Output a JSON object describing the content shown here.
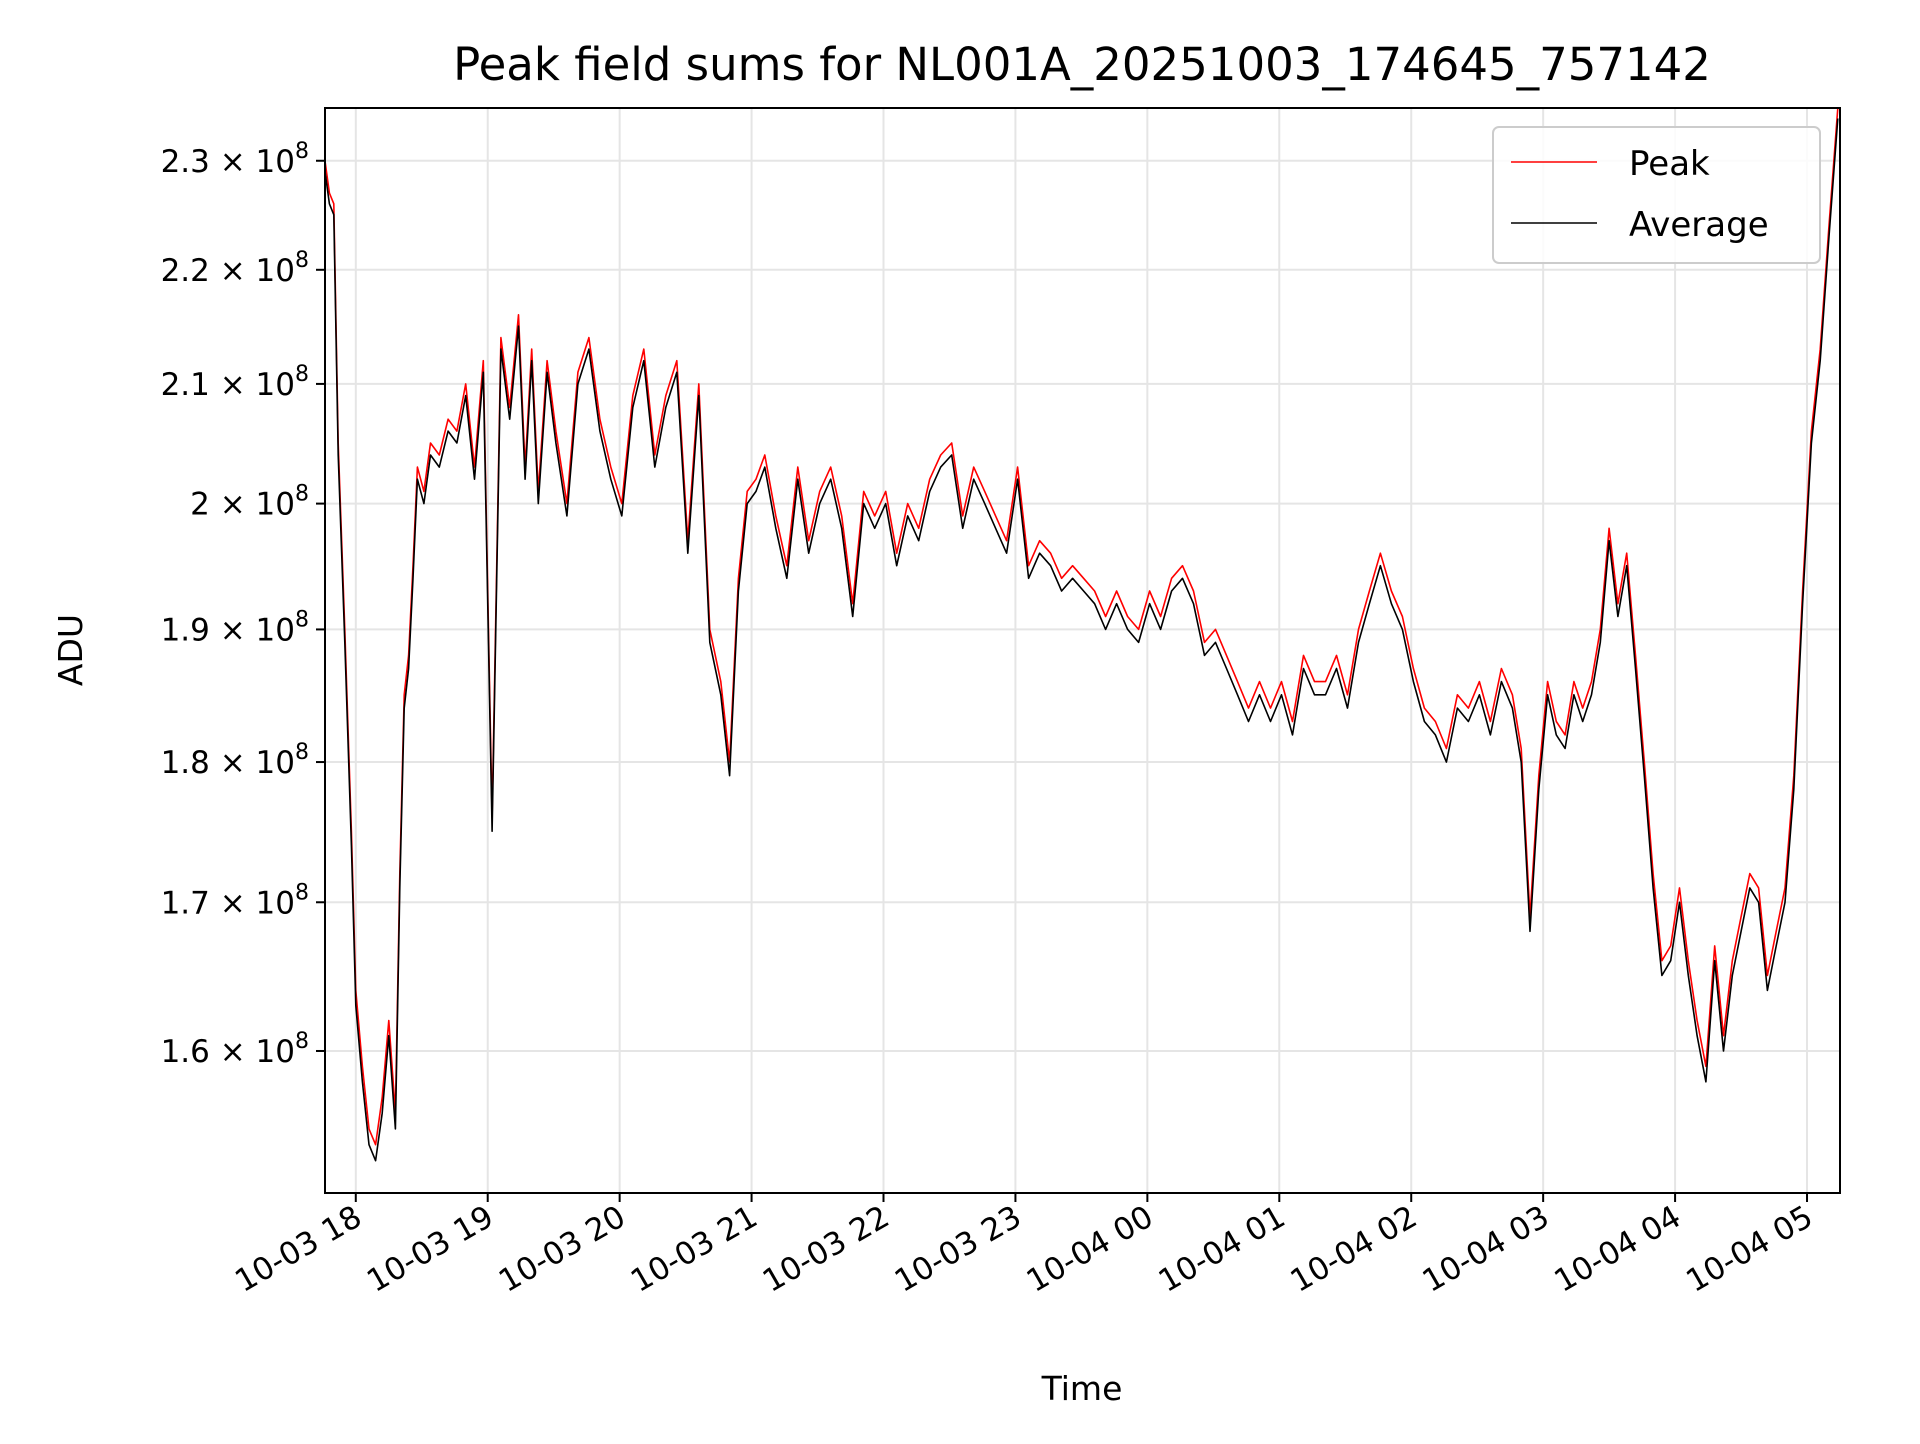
{
  "colors": {
    "peak": "#ff0000",
    "average": "#000000",
    "grid": "#e5e5e5"
  },
  "chart_data": {
    "type": "line",
    "title": "Peak field sums for NL001A_20251003_174645_757142",
    "xlabel": "Time",
    "ylabel": "ADU",
    "yscale": "log",
    "grid": true,
    "legend_position": "top-right",
    "xlim": [
      "2025-10-03 17:46",
      "2025-10-04 05:15"
    ],
    "ylim": [
      151000000,
      235000000
    ],
    "xticks": [
      "2025-10-03 18:00",
      "2025-10-03 19:00",
      "2025-10-03 20:00",
      "2025-10-03 21:00",
      "2025-10-03 22:00",
      "2025-10-03 23:00",
      "2025-10-04 00:00",
      "2025-10-04 01:00",
      "2025-10-04 02:00",
      "2025-10-04 03:00",
      "2025-10-04 04:00",
      "2025-10-04 05:00"
    ],
    "xtick_labels": [
      "10-03 18",
      "10-03 19",
      "10-03 20",
      "10-03 21",
      "10-03 22",
      "10-03 23",
      "10-04 00",
      "10-04 01",
      "10-04 02",
      "10-04 03",
      "10-04 04",
      "10-04 05"
    ],
    "yticks": [
      160000000,
      170000000,
      180000000,
      190000000,
      200000000,
      210000000,
      220000000,
      230000000
    ],
    "ytick_labels": [
      {
        "mantissa": "1.6",
        "exp": "8"
      },
      {
        "mantissa": "1.7",
        "exp": "8"
      },
      {
        "mantissa": "1.8",
        "exp": "8"
      },
      {
        "mantissa": "1.9",
        "exp": "8"
      },
      {
        "mantissa": "2",
        "exp": "8"
      },
      {
        "mantissa": "2.1",
        "exp": "8"
      },
      {
        "mantissa": "2.2",
        "exp": "8"
      },
      {
        "mantissa": "2.3",
        "exp": "8"
      }
    ],
    "times_prefix": "x values are times in HH:MM; first day 2025-10-03, values after midnight are 2025-10-04",
    "x": [
      "17:46",
      "17:48",
      "17:50",
      "17:52",
      "17:55",
      "17:58",
      "18:00",
      "18:03",
      "18:06",
      "18:09",
      "18:12",
      "18:15",
      "18:18",
      "18:20",
      "18:22",
      "18:24",
      "18:26",
      "18:28",
      "18:31",
      "18:34",
      "18:38",
      "18:42",
      "18:46",
      "18:50",
      "18:54",
      "18:58",
      "19:02",
      "19:06",
      "19:10",
      "19:14",
      "19:17",
      "19:20",
      "19:23",
      "19:27",
      "19:31",
      "19:36",
      "19:41",
      "19:46",
      "19:51",
      "19:56",
      "20:01",
      "20:06",
      "20:11",
      "20:16",
      "20:21",
      "20:26",
      "20:31",
      "20:36",
      "20:41",
      "20:46",
      "20:50",
      "20:54",
      "20:58",
      "21:02",
      "21:06",
      "21:11",
      "21:16",
      "21:21",
      "21:26",
      "21:31",
      "21:36",
      "21:41",
      "21:46",
      "21:51",
      "21:56",
      "22:01",
      "22:06",
      "22:11",
      "22:16",
      "22:21",
      "22:26",
      "22:31",
      "22:36",
      "22:41",
      "22:46",
      "22:51",
      "22:56",
      "23:01",
      "23:06",
      "23:11",
      "23:16",
      "23:21",
      "23:26",
      "23:31",
      "23:36",
      "23:41",
      "23:46",
      "23:51",
      "23:56",
      "00:01",
      "00:06",
      "00:11",
      "00:16",
      "00:21",
      "00:26",
      "00:31",
      "00:36",
      "00:41",
      "00:46",
      "00:51",
      "00:56",
      "01:01",
      "01:06",
      "01:11",
      "01:16",
      "01:21",
      "01:26",
      "01:31",
      "01:36",
      "01:41",
      "01:46",
      "01:51",
      "01:56",
      "02:01",
      "02:06",
      "02:11",
      "02:16",
      "02:21",
      "02:26",
      "02:31",
      "02:36",
      "02:41",
      "02:46",
      "02:50",
      "02:54",
      "02:58",
      "03:02",
      "03:06",
      "03:10",
      "03:14",
      "03:18",
      "03:22",
      "03:26",
      "03:30",
      "03:34",
      "03:38",
      "03:42",
      "03:46",
      "03:50",
      "03:54",
      "03:58",
      "04:02",
      "04:06",
      "04:10",
      "04:14",
      "04:18",
      "04:22",
      "04:26",
      "04:30",
      "04:34",
      "04:38",
      "04:42",
      "04:46",
      "04:50",
      "04:54",
      "04:58",
      "05:02",
      "05:06",
      "05:10",
      "05:14"
    ],
    "series": [
      {
        "name": "Peak",
        "values": [
          230000000,
          227000000,
          226000000,
          205000000,
          190000000,
          175000000,
          164000000,
          159000000,
          155000000,
          154000000,
          157000000,
          162000000,
          156000000,
          172000000,
          185000000,
          188000000,
          195000000,
          203000000,
          201000000,
          205000000,
          204000000,
          207000000,
          206000000,
          210000000,
          203000000,
          212000000,
          176000000,
          214000000,
          208000000,
          216000000,
          203000000,
          213000000,
          201000000,
          212000000,
          206000000,
          200000000,
          211000000,
          214000000,
          207000000,
          203000000,
          200000000,
          209000000,
          213000000,
          204000000,
          209000000,
          212000000,
          197000000,
          210000000,
          190000000,
          186000000,
          180000000,
          194000000,
          201000000,
          202000000,
          204000000,
          199000000,
          195000000,
          203000000,
          197000000,
          201000000,
          203000000,
          199000000,
          192000000,
          201000000,
          199000000,
          201000000,
          196000000,
          200000000,
          198000000,
          202000000,
          204000000,
          205000000,
          199000000,
          203000000,
          201000000,
          199000000,
          197000000,
          203000000,
          195000000,
          197000000,
          196000000,
          194000000,
          195000000,
          194000000,
          193000000,
          191000000,
          193000000,
          191000000,
          190000000,
          193000000,
          191000000,
          194000000,
          195000000,
          193000000,
          189000000,
          190000000,
          188000000,
          186000000,
          184000000,
          186000000,
          184000000,
          186000000,
          183000000,
          188000000,
          186000000,
          186000000,
          188000000,
          185000000,
          190000000,
          193000000,
          196000000,
          193000000,
          191000000,
          187000000,
          184000000,
          183000000,
          181000000,
          185000000,
          184000000,
          186000000,
          183000000,
          187000000,
          185000000,
          181000000,
          169000000,
          179000000,
          186000000,
          183000000,
          182000000,
          186000000,
          184000000,
          186000000,
          190000000,
          198000000,
          192000000,
          196000000,
          188000000,
          180000000,
          172000000,
          166000000,
          167000000,
          171000000,
          166000000,
          162000000,
          159000000,
          167000000,
          161000000,
          166000000,
          169000000,
          172000000,
          171000000,
          165000000,
          168000000,
          171000000,
          179000000,
          193000000,
          206000000,
          213000000,
          224000000,
          235000000
        ]
      },
      {
        "name": "Average",
        "values": [
          229000000,
          226000000,
          225000000,
          204000000,
          189000000,
          174000000,
          163000000,
          158000000,
          154000000,
          153000000,
          156000000,
          161000000,
          155000000,
          171000000,
          184000000,
          187000000,
          194000000,
          202000000,
          200000000,
          204000000,
          203000000,
          206000000,
          205000000,
          209000000,
          202000000,
          211000000,
          175000000,
          213000000,
          207000000,
          215000000,
          202000000,
          212000000,
          200000000,
          211000000,
          205000000,
          199000000,
          210000000,
          213000000,
          206000000,
          202000000,
          199000000,
          208000000,
          212000000,
          203000000,
          208000000,
          211000000,
          196000000,
          209000000,
          189000000,
          185000000,
          179000000,
          193000000,
          200000000,
          201000000,
          203000000,
          198000000,
          194000000,
          202000000,
          196000000,
          200000000,
          202000000,
          198000000,
          191000000,
          200000000,
          198000000,
          200000000,
          195000000,
          199000000,
          197000000,
          201000000,
          203000000,
          204000000,
          198000000,
          202000000,
          200000000,
          198000000,
          196000000,
          202000000,
          194000000,
          196000000,
          195000000,
          193000000,
          194000000,
          193000000,
          192000000,
          190000000,
          192000000,
          190000000,
          189000000,
          192000000,
          190000000,
          193000000,
          194000000,
          192000000,
          188000000,
          189000000,
          187000000,
          185000000,
          183000000,
          185000000,
          183000000,
          185000000,
          182000000,
          187000000,
          185000000,
          185000000,
          187000000,
          184000000,
          189000000,
          192000000,
          195000000,
          192000000,
          190000000,
          186000000,
          183000000,
          182000000,
          180000000,
          184000000,
          183000000,
          185000000,
          182000000,
          186000000,
          184000000,
          180000000,
          168000000,
          178000000,
          185000000,
          182000000,
          181000000,
          185000000,
          183000000,
          185000000,
          189000000,
          197000000,
          191000000,
          195000000,
          187000000,
          179000000,
          171000000,
          165000000,
          166000000,
          170000000,
          165000000,
          161000000,
          158000000,
          166000000,
          160000000,
          165000000,
          168000000,
          171000000,
          170000000,
          164000000,
          167000000,
          170000000,
          178000000,
          192000000,
          205000000,
          212000000,
          223000000,
          234000000
        ]
      }
    ],
    "legend": [
      "Peak",
      "Average"
    ]
  }
}
